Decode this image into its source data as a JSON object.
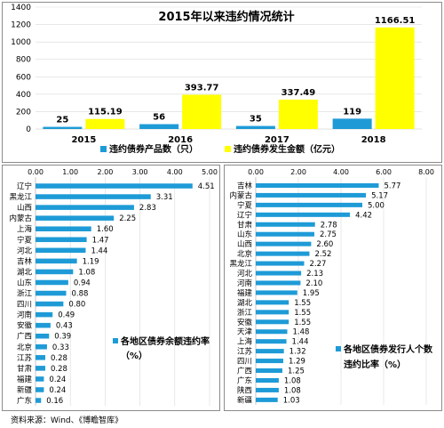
{
  "colors": {
    "blue": "#1e9bd7",
    "yellow": "#ffff00",
    "grid": "#d9d9d9",
    "border": "#8c8c8c",
    "text": "#000000"
  },
  "chart_data": [
    {
      "type": "bar",
      "title": "2015年以来违约情况统计",
      "categories": [
        "2015",
        "2016",
        "2017",
        "2018"
      ],
      "ylim": [
        0,
        1400
      ],
      "yticks": [
        "0",
        "200",
        "400",
        "600",
        "800",
        "1000",
        "1200",
        "1400"
      ],
      "grid": true,
      "legend_position": "bottom",
      "series": [
        {
          "name": "违约债券产品数（只）",
          "color_key": "blue",
          "values": [
            25,
            56,
            35,
            119
          ],
          "labels": [
            "25",
            "56",
            "35",
            "119"
          ]
        },
        {
          "name": "违约债券发生金额（亿元）",
          "color_key": "yellow",
          "values": [
            115.19,
            393.77,
            337.49,
            1166.51
          ],
          "labels": [
            "115.19",
            "393.77",
            "337.49",
            "1166.51"
          ]
        }
      ]
    },
    {
      "type": "bar",
      "orientation": "horizontal",
      "categories": [
        "辽宁",
        "黑龙江",
        "山西",
        "内蒙古",
        "上海",
        "宁夏",
        "河北",
        "吉林",
        "湖北",
        "山东",
        "浙江",
        "四川",
        "河南",
        "安徽",
        "广西",
        "北京",
        "江苏",
        "甘肃",
        "福建",
        "新疆",
        "广东"
      ],
      "values": [
        4.51,
        3.31,
        2.83,
        2.25,
        1.6,
        1.47,
        1.44,
        1.19,
        1.08,
        0.94,
        0.88,
        0.8,
        0.49,
        0.43,
        0.39,
        0.33,
        0.28,
        0.28,
        0.24,
        0.24,
        0.16
      ],
      "labels": [
        "4.51",
        "3.31",
        "2.83",
        "2.25",
        "1.60",
        "1.47",
        "1.44",
        "1.19",
        "1.08",
        "0.94",
        "0.88",
        "0.80",
        "0.49",
        "0.43",
        "0.39",
        "0.33",
        "0.28",
        "0.28",
        "0.24",
        "0.24",
        "0.16"
      ],
      "xlim": [
        0,
        5
      ],
      "xticks": [
        "0.00",
        "1.00",
        "2.00",
        "3.00",
        "4.00",
        "5.00"
      ],
      "grid": true,
      "legend_position": "right",
      "legend": [
        "各地区债券余额违约率",
        "（%）"
      ]
    },
    {
      "type": "bar",
      "orientation": "horizontal",
      "categories": [
        "吉林",
        "内蒙古",
        "宁夏",
        "辽宁",
        "甘肃",
        "山东",
        "山西",
        "北京",
        "黑龙江",
        "河北",
        "河南",
        "福建",
        "湖北",
        "浙江",
        "安徽",
        "天津",
        "上海",
        "江苏",
        "四川",
        "广西",
        "广东",
        "陕西",
        "新疆"
      ],
      "values": [
        5.77,
        5.17,
        5.0,
        4.42,
        2.78,
        2.75,
        2.6,
        2.52,
        2.27,
        2.13,
        2.1,
        1.95,
        1.55,
        1.55,
        1.55,
        1.48,
        1.44,
        1.32,
        1.29,
        1.25,
        1.08,
        1.08,
        1.03
      ],
      "labels": [
        "5.77",
        "5.17",
        "5.00",
        "4.42",
        "2.78",
        "2.75",
        "2.60",
        "2.52",
        "2.27",
        "2.13",
        "2.10",
        "1.95",
        "1.55",
        "1.55",
        "1.55",
        "1.48",
        "1.44",
        "1.32",
        "1.29",
        "1.25",
        "1.08",
        "1.08",
        "1.03"
      ],
      "xlim": [
        0,
        8
      ],
      "xticks": [
        "0.00",
        "2.00",
        "4.00",
        "6.00",
        "8.00"
      ],
      "grid": true,
      "legend_position": "right",
      "legend": [
        "各地区债券发行人个数",
        "违约比率（%）"
      ]
    }
  ],
  "source": "资料来源：Wind、《博瞻智库》"
}
